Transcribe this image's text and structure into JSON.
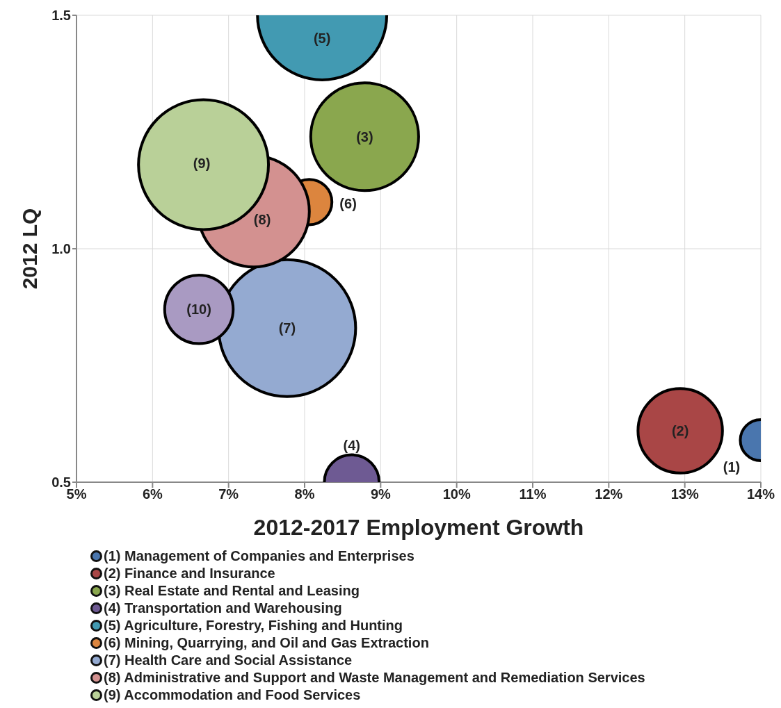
{
  "chart_data": {
    "type": "bubble",
    "xlabel": "2012-2017 Employment Growth",
    "ylabel": "2012 LQ",
    "xlim": [
      5,
      14
    ],
    "xticks": [
      {
        "value": 5,
        "label": "5%"
      },
      {
        "value": 6,
        "label": "6%"
      },
      {
        "value": 7,
        "label": "7%"
      },
      {
        "value": 8,
        "label": "8%"
      },
      {
        "value": 9,
        "label": "9%"
      },
      {
        "value": 10,
        "label": "10%"
      },
      {
        "value": 11,
        "label": "11%"
      },
      {
        "value": 12,
        "label": "12%"
      },
      {
        "value": 13,
        "label": "13%"
      },
      {
        "value": 14,
        "label": "14%"
      }
    ],
    "ylim": [
      0.5,
      1.5
    ],
    "yticks": [
      0.5,
      {
        "value": 1,
        "label": "1.0"
      },
      1.5
    ],
    "grid": true,
    "legend": "bottom",
    "series": [
      {
        "name": "(1) Management of Companies and Enterprises",
        "color": "#4a76ae",
        "x": [
          14
        ],
        "values": [
          0.59
        ],
        "sizes": [
          0.09
        ]
      },
      {
        "name": "(2) Finance and Insurance",
        "color": "#a94646",
        "x": [
          12.94
        ],
        "values": [
          0.61
        ],
        "sizes": [
          0.38
        ]
      },
      {
        "name": "(3) Real Estate and Rental and Leasing",
        "color": "#8aa74e",
        "x": [
          8.79
        ],
        "values": [
          1.24
        ],
        "sizes": [
          0.62
        ]
      },
      {
        "name": "(4) Transportation and Warehousing",
        "color": "#6e5a93",
        "x": [
          8.62
        ],
        "values": [
          0.5
        ],
        "sizes": [
          0.16
        ]
      },
      {
        "name": "(5) Agriculture, Forestry, Fishing and Hunting",
        "color": "#429ab2",
        "x": [
          8.23
        ],
        "values": [
          1.5
        ],
        "sizes": [
          0.89
        ]
      },
      {
        "name": "(6) Mining, Quarrying, and Oil and Gas Extraction",
        "color": "#dc853e",
        "x": [
          8.06
        ],
        "values": [
          1.1
        ],
        "sizes": [
          0.11
        ]
      },
      {
        "name": "(7) Health Care and Social Assistance",
        "color": "#94aad1",
        "x": [
          7.77
        ],
        "values": [
          0.83
        ],
        "sizes": [
          1
        ]
      },
      {
        "name": "(8) Administrative and Support and Waste Management and Remediation Services",
        "color": "#d39190",
        "x": [
          7.33
        ],
        "values": [
          1.08
        ],
        "sizes": [
          0.66
        ]
      },
      {
        "name": "(9) Accommodation and Food Services",
        "color": "#b9d098",
        "x": [
          6.67
        ],
        "values": [
          1.18
        ],
        "sizes": [
          0.9
        ]
      },
      {
        "color": "#a99ac2",
        "x": [
          6.61
        ],
        "values": [
          0.87
        ],
        "sizes": [
          0.25
        ]
      }
    ],
    "annotations": [
      {
        "text": "(1)",
        "x": 14,
        "y": 0.59
      },
      {
        "text": "(2)",
        "x": 12.94,
        "y": 0.61
      },
      {
        "text": "(3)",
        "x": 8.79,
        "y": 1.24
      },
      {
        "text": "(4)",
        "x": 8.62,
        "y": 0.5
      },
      {
        "text": "(5)",
        "x": 8.23,
        "y": 1.5
      },
      {
        "text": "(6)",
        "x": 8.06,
        "y": 1.1
      },
      {
        "text": "(7)",
        "x": 7.77,
        "y": 0.83
      },
      {
        "text": "(8)",
        "x": 7.33,
        "y": 1.08
      },
      {
        "text": "(9)",
        "x": 6.67,
        "y": 1.18
      },
      {
        "text": "(10)",
        "x": 6.61,
        "y": 0.87
      }
    ]
  }
}
